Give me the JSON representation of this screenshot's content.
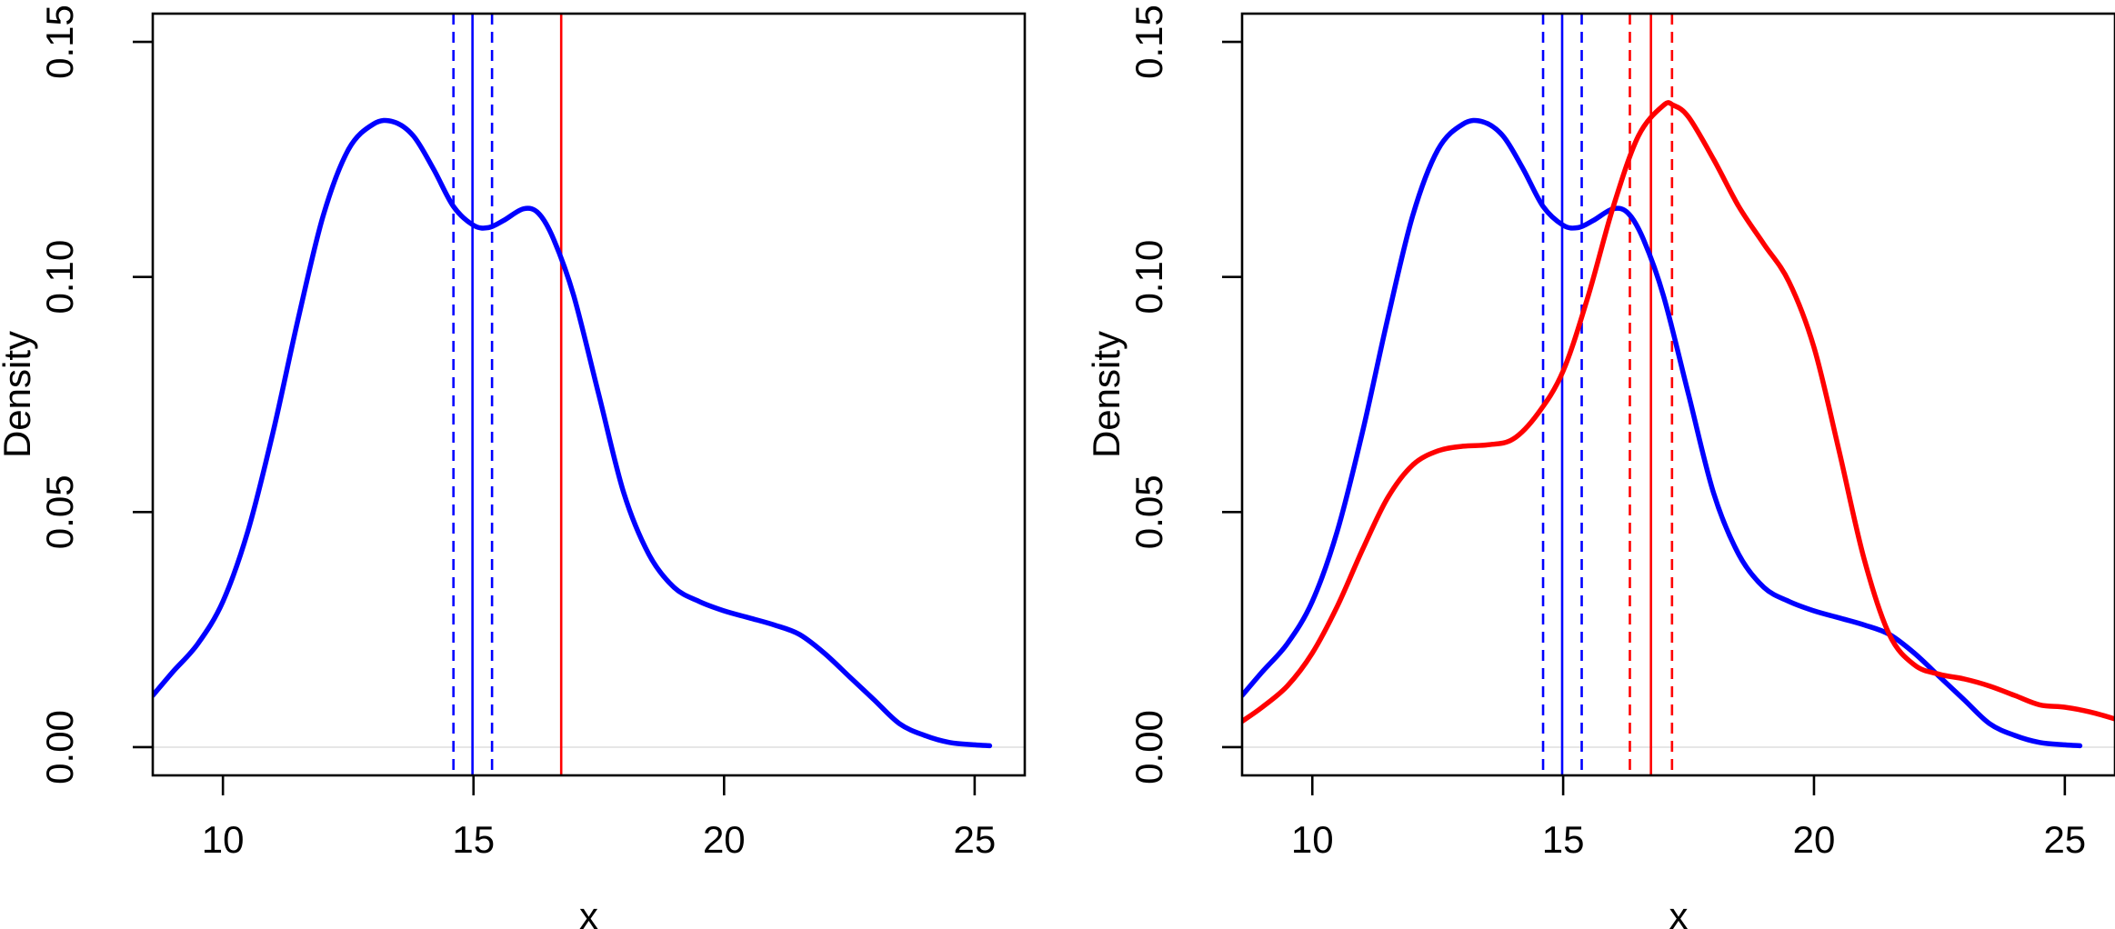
{
  "chart_data": [
    {
      "type": "line",
      "title": "",
      "xlabel": "x",
      "ylabel": "Density",
      "xlim": [
        8.6,
        26.0
      ],
      "ylim": [
        -0.006,
        0.156
      ],
      "xticks": [
        10,
        15,
        20,
        25
      ],
      "xtick_labels": [
        "10",
        "15",
        "20",
        "25"
      ],
      "yticks": [
        0.0,
        0.05,
        0.1,
        0.15
      ],
      "ytick_labels": [
        "0.00",
        "0.05",
        "0.10",
        "0.15"
      ],
      "ytick_rotation": "vertical",
      "grid": false,
      "legend": "none",
      "baseline": {
        "y": 0,
        "color": "#e6e6e6"
      },
      "series": [
        {
          "color": "#0000ff",
          "x": [
            8.6,
            9.0,
            9.5,
            10.0,
            10.5,
            11.0,
            11.5,
            12.0,
            12.5,
            13.0,
            13.4,
            13.8,
            14.2,
            14.6,
            15.0,
            15.3,
            15.6,
            16.0,
            16.3,
            16.6,
            17.0,
            17.5,
            18.0,
            18.5,
            19.0,
            19.5,
            20.0,
            20.5,
            21.0,
            21.5,
            22.0,
            22.5,
            23.0,
            23.5,
            24.0,
            24.5,
            25.0,
            25.3
          ],
          "y": [
            0.011,
            0.016,
            0.022,
            0.031,
            0.046,
            0.067,
            0.091,
            0.113,
            0.127,
            0.1325,
            0.133,
            0.13,
            0.123,
            0.115,
            0.111,
            0.1105,
            0.112,
            0.1145,
            0.1135,
            0.108,
            0.096,
            0.075,
            0.054,
            0.041,
            0.034,
            0.031,
            0.029,
            0.0275,
            0.026,
            0.024,
            0.02,
            0.015,
            0.01,
            0.005,
            0.0025,
            0.001,
            0.0005,
            0.0003
          ]
        }
      ],
      "vlines": [
        {
          "x": 14.6,
          "color": "#0000ff",
          "style": "dashed"
        },
        {
          "x": 14.98,
          "color": "#0000ff",
          "style": "solid"
        },
        {
          "x": 15.37,
          "color": "#0000ff",
          "style": "dashed"
        },
        {
          "x": 16.75,
          "color": "#ff0000",
          "style": "solid"
        }
      ]
    },
    {
      "type": "line",
      "title": "",
      "xlabel": "x",
      "ylabel": "Density",
      "xlim": [
        8.6,
        26.0
      ],
      "ylim": [
        -0.006,
        0.156
      ],
      "xticks": [
        10,
        15,
        20,
        25
      ],
      "xtick_labels": [
        "10",
        "15",
        "20",
        "25"
      ],
      "yticks": [
        0.0,
        0.05,
        0.1,
        0.15
      ],
      "ytick_labels": [
        "0.00",
        "0.05",
        "0.10",
        "0.15"
      ],
      "ytick_rotation": "vertical",
      "grid": false,
      "legend": "none",
      "baseline": {
        "y": 0,
        "color": "#e6e6e6"
      },
      "series": [
        {
          "color": "#0000ff",
          "x": [
            8.6,
            9.0,
            9.5,
            10.0,
            10.5,
            11.0,
            11.5,
            12.0,
            12.5,
            13.0,
            13.4,
            13.8,
            14.2,
            14.6,
            15.0,
            15.3,
            15.6,
            16.0,
            16.3,
            16.6,
            17.0,
            17.5,
            18.0,
            18.5,
            19.0,
            19.5,
            20.0,
            20.5,
            21.0,
            21.5,
            22.0,
            22.5,
            23.0,
            23.5,
            24.0,
            24.5,
            25.0,
            25.3
          ],
          "y": [
            0.011,
            0.016,
            0.022,
            0.031,
            0.046,
            0.067,
            0.091,
            0.113,
            0.127,
            0.1325,
            0.133,
            0.13,
            0.123,
            0.115,
            0.111,
            0.1105,
            0.112,
            0.1145,
            0.1135,
            0.108,
            0.096,
            0.075,
            0.054,
            0.041,
            0.034,
            0.031,
            0.029,
            0.0275,
            0.026,
            0.024,
            0.02,
            0.015,
            0.01,
            0.005,
            0.0025,
            0.001,
            0.0005,
            0.0003
          ]
        },
        {
          "color": "#ff0000",
          "x": [
            8.6,
            9.0,
            9.5,
            10.0,
            10.5,
            11.0,
            11.5,
            12.0,
            12.5,
            13.0,
            13.5,
            14.0,
            14.5,
            15.0,
            15.5,
            16.0,
            16.5,
            17.0,
            17.2,
            17.5,
            18.0,
            18.5,
            19.0,
            19.5,
            20.0,
            20.5,
            21.0,
            21.5,
            22.0,
            22.5,
            23.0,
            23.5,
            24.0,
            24.5,
            25.0,
            25.5,
            26.0
          ],
          "y": [
            0.0055,
            0.0085,
            0.013,
            0.02,
            0.03,
            0.042,
            0.053,
            0.06,
            0.063,
            0.064,
            0.0643,
            0.0655,
            0.071,
            0.08,
            0.096,
            0.115,
            0.13,
            0.1365,
            0.1365,
            0.134,
            0.125,
            0.115,
            0.107,
            0.099,
            0.085,
            0.063,
            0.04,
            0.024,
            0.0175,
            0.0155,
            0.0145,
            0.013,
            0.011,
            0.009,
            0.0085,
            0.0075,
            0.006
          ]
        }
      ],
      "vlines": [
        {
          "x": 14.6,
          "color": "#0000ff",
          "style": "dashed"
        },
        {
          "x": 14.98,
          "color": "#0000ff",
          "style": "solid"
        },
        {
          "x": 15.37,
          "color": "#0000ff",
          "style": "dashed"
        },
        {
          "x": 16.33,
          "color": "#ff0000",
          "style": "dashed"
        },
        {
          "x": 16.75,
          "color": "#ff0000",
          "style": "solid"
        },
        {
          "x": 17.17,
          "color": "#ff0000",
          "style": "dashed"
        }
      ]
    }
  ]
}
